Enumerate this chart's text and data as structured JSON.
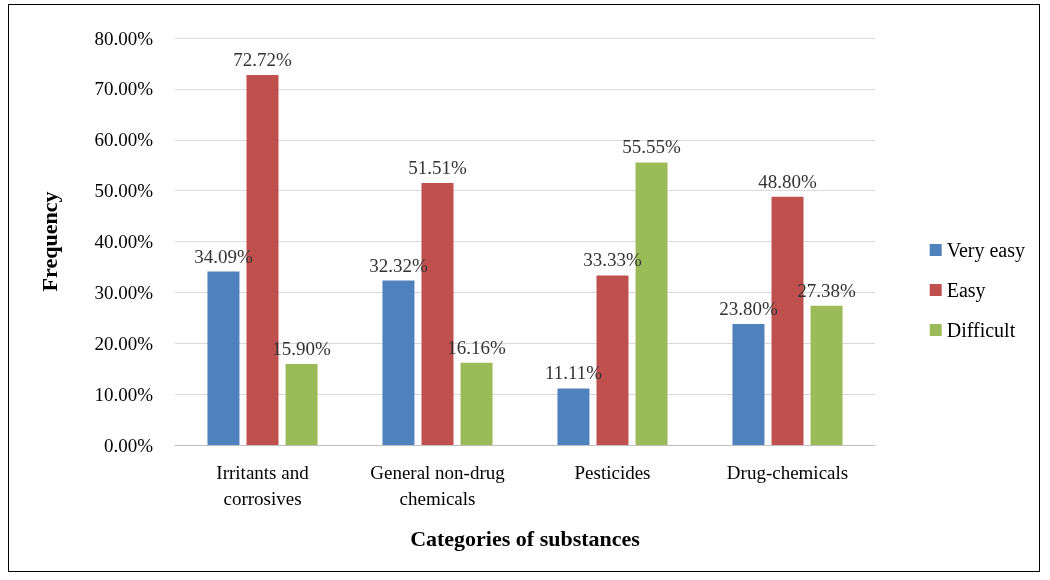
{
  "chart_data": {
    "type": "bar",
    "xlabel": "Categories of substances",
    "ylabel": "Frequency",
    "categories": [
      "Irritants and\ncorrosives",
      "General non-drug\nchemicals",
      "Pesticides",
      "Drug-chemicals"
    ],
    "series": [
      {
        "name": "Very easy",
        "color": "#4f81bd",
        "values": [
          34.09,
          32.32,
          11.11,
          23.8
        ],
        "value_labels": [
          "34.09%",
          "32.32%",
          "11.11%",
          "23.80%"
        ]
      },
      {
        "name": "Easy",
        "color": "#c0504d",
        "values": [
          72.72,
          51.51,
          33.33,
          48.8
        ],
        "value_labels": [
          "72.72%",
          "51.51%",
          "33.33%",
          "48.80%"
        ]
      },
      {
        "name": "Difficult",
        "color": "#9bbb59",
        "values": [
          15.9,
          16.16,
          55.55,
          27.38
        ],
        "value_labels": [
          "15.90%",
          "16.16%",
          "55.55%",
          "27.38%"
        ]
      }
    ],
    "ylim": [
      0,
      80
    ],
    "yticks": [
      {
        "value": 0,
        "label": "0.00%"
      },
      {
        "value": 10,
        "label": "10.00%"
      },
      {
        "value": 20,
        "label": "20.00%"
      },
      {
        "value": 30,
        "label": "30.00%"
      },
      {
        "value": 40,
        "label": "40.00%"
      },
      {
        "value": 50,
        "label": "50.00%"
      },
      {
        "value": 60,
        "label": "60.00%"
      },
      {
        "value": 70,
        "label": "70.00%"
      },
      {
        "value": 80,
        "label": "80.00%"
      }
    ],
    "grid": "y",
    "legend": "right"
  }
}
